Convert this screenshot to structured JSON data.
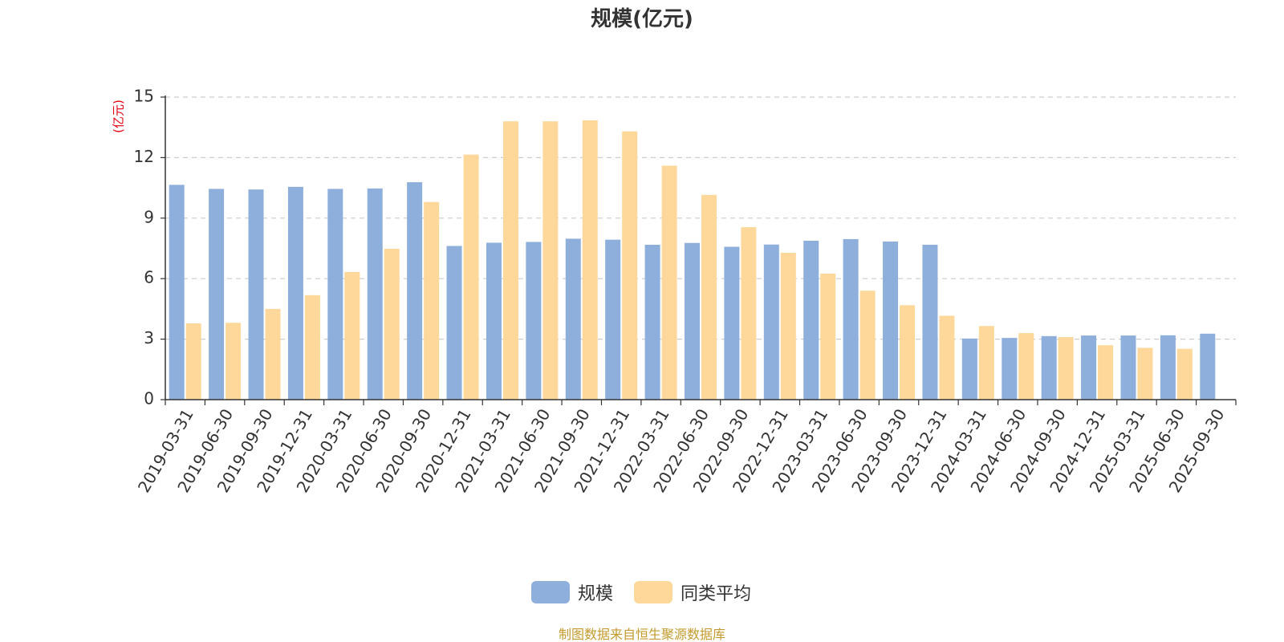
{
  "chart_data": {
    "type": "bar",
    "title": "规模(亿元)",
    "ylabel": "(亿元)",
    "xlabel": "",
    "ylim": [
      0,
      15
    ],
    "yticks": [
      0,
      3,
      6,
      9,
      12,
      15
    ],
    "grid": true,
    "legend_position": "bottom-center",
    "categories": [
      "2019-03-31",
      "2019-06-30",
      "2019-09-30",
      "2019-12-31",
      "2020-03-31",
      "2020-06-30",
      "2020-09-30",
      "2020-12-31",
      "2021-03-31",
      "2021-06-30",
      "2021-09-30",
      "2021-12-31",
      "2022-03-31",
      "2022-06-30",
      "2022-09-30",
      "2022-12-31",
      "2023-03-31",
      "2023-06-30",
      "2023-09-30",
      "2023-12-31",
      "2024-03-31",
      "2024-06-30",
      "2024-09-30",
      "2024-12-31",
      "2025-03-31",
      "2025-06-30",
      "2025-09-30"
    ],
    "series": [
      {
        "name": "规模",
        "color": "#8eaedb",
        "values": [
          10.65,
          10.45,
          10.42,
          10.55,
          10.45,
          10.47,
          10.78,
          7.62,
          7.78,
          7.82,
          7.98,
          7.93,
          7.68,
          7.77,
          7.58,
          7.69,
          7.88,
          7.96,
          7.84,
          7.68,
          3.03,
          3.06,
          3.15,
          3.18,
          3.18,
          3.19,
          3.27
        ]
      },
      {
        "name": "同类平均",
        "color": "#fdd89a",
        "values": [
          3.78,
          3.81,
          4.5,
          5.18,
          6.33,
          7.48,
          9.8,
          12.15,
          13.8,
          13.8,
          13.85,
          13.3,
          11.6,
          10.15,
          8.55,
          7.28,
          6.25,
          5.4,
          4.68,
          4.16,
          3.65,
          3.3,
          3.1,
          2.7,
          2.57,
          2.52,
          null
        ]
      }
    ]
  },
  "footer": {
    "source": "制图数据来自恒生聚源数据库"
  }
}
